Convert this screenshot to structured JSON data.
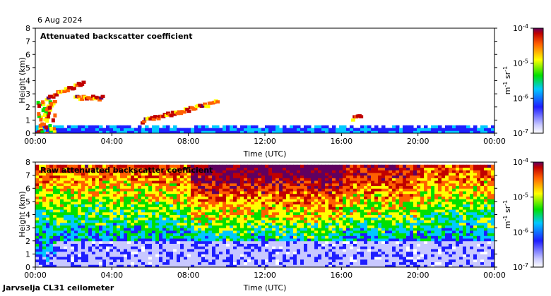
{
  "date": "6 Aug 2024",
  "station": "Jarvselja CL31 ceilometer",
  "chart_data": [
    {
      "type": "heatmap",
      "title": "Attenuated backscatter coefficient",
      "xlabel": "Time (UTC)",
      "ylabel": "Height (km)",
      "xticks": [
        "00:00",
        "04:00",
        "08:00",
        "12:00",
        "16:00",
        "20:00",
        "00:00"
      ],
      "yticks": [
        "0",
        "1",
        "2",
        "3",
        "4",
        "5",
        "6",
        "7",
        "8"
      ],
      "xlim_hours": [
        0,
        24
      ],
      "ylim_km": [
        0,
        8
      ],
      "colorbar": {
        "label": "m-1 sr-1",
        "ticks": [
          "10-4",
          "10-5",
          "10-6",
          "10-7"
        ],
        "range": [
          1e-07,
          0.0001
        ],
        "scale": "log"
      },
      "features": [
        {
          "name": "low-level signal",
          "t_start": 0.0,
          "t_end": 24.0,
          "height_km": [
            0.0,
            0.4
          ]
        },
        {
          "name": "intense near-surface layer",
          "t_start": 0.0,
          "t_end": 1.0,
          "height_km": [
            0.0,
            2.8
          ]
        },
        {
          "name": "cloud layer rising",
          "t_start": 0.5,
          "t_end": 2.5,
          "height_km": [
            2.8,
            4.0
          ]
        },
        {
          "name": "cloud band",
          "t_start": 2.0,
          "t_end": 3.5,
          "height_km": [
            2.8,
            2.8
          ]
        },
        {
          "name": "patches",
          "t_start": 5.5,
          "t_end": 9.5,
          "height_km": [
            1.0,
            2.5
          ]
        },
        {
          "name": "patch",
          "t_start": 16.5,
          "t_end": 17.0,
          "height_km": [
            1.2,
            1.4
          ]
        }
      ]
    },
    {
      "type": "heatmap",
      "title": "Raw attenuated backscatter coefficient",
      "xlabel": "Time (UTC)",
      "ylabel": "Height (km)",
      "xticks": [
        "00:00",
        "04:00",
        "08:00",
        "12:00",
        "16:00",
        "20:00",
        "00:00"
      ],
      "yticks": [
        "0",
        "1",
        "2",
        "3",
        "4",
        "5",
        "6",
        "7",
        "8"
      ],
      "xlim_hours": [
        0,
        24
      ],
      "ylim_km": [
        0,
        8
      ],
      "colorbar": {
        "label": "m-1 sr-1",
        "ticks": [
          "10-4",
          "10-5",
          "10-6",
          "10-7"
        ],
        "range": [
          1e-07,
          0.0001
        ],
        "scale": "log"
      },
      "features": [
        {
          "name": "noisy upper region high",
          "t_start": 9.0,
          "t_end": 16.0,
          "height_km": [
            4.0,
            7.7
          ]
        },
        {
          "name": "low signal region",
          "t_start": 0.0,
          "t_end": 24.0,
          "height_km": [
            0.0,
            2.0
          ]
        }
      ]
    }
  ]
}
